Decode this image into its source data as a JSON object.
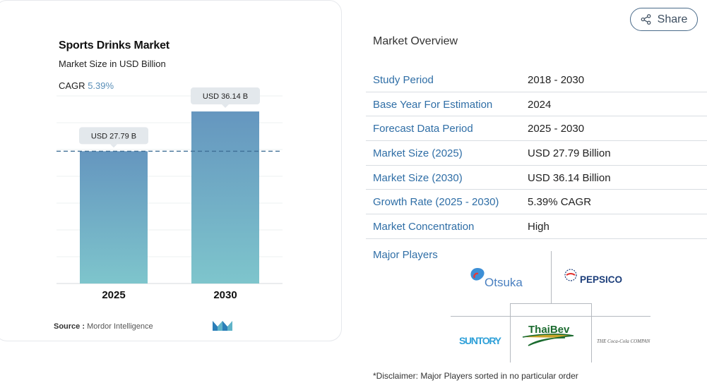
{
  "share": {
    "label": "Share",
    "icon": "share-icon"
  },
  "chart": {
    "title": "Sports Drinks Market",
    "subtitle": "Market Size in USD Billion",
    "cagr_label": "CAGR",
    "cagr_value": "5.39%",
    "source_label": "Source :",
    "source_value": "Mordor Intelligence"
  },
  "chart_data": {
    "type": "bar",
    "title": "Sports Drinks Market",
    "subtitle": "Market Size in USD Billion",
    "categories": [
      "2025",
      "2030"
    ],
    "values": [
      27.79,
      36.14
    ],
    "data_labels": [
      "USD 27.79 B",
      "USD 36.14 B"
    ],
    "ylim": [
      0,
      40
    ],
    "grid": true,
    "reference_line": 27.79,
    "bar_gradient": {
      "top": "#6596bf",
      "bottom": "#7ec5cc"
    },
    "label_bg": "#e3e8ec"
  },
  "overview": {
    "title": "Market Overview",
    "rows": [
      {
        "key": "Study Period",
        "value": "2018 - 2030"
      },
      {
        "key": "Base Year For Estimation",
        "value": "2024"
      },
      {
        "key": "Forecast Data Period",
        "value": "2025 - 2030"
      },
      {
        "key": "Market Size (2025)",
        "value": "USD 27.79 Billion"
      },
      {
        "key": "Market Size (2030)",
        "value": "USD 36.14 Billion"
      },
      {
        "key": "Growth Rate (2025 - 2030)",
        "value": "5.39% CAGR"
      },
      {
        "key": "Market Concentration",
        "value": "High"
      }
    ]
  },
  "players": {
    "label": "Major Players",
    "logos": [
      {
        "name": "Otsuka",
        "text": "Otsuka",
        "color": "#3d7fc4"
      },
      {
        "name": "PepsiCo",
        "text": "PEPSICO",
        "color": "#1c3e7a"
      },
      {
        "name": "Suntory",
        "text": "SUNTORY",
        "color": "#2fa0d8"
      },
      {
        "name": "ThaiBev",
        "text": "ThaiBev",
        "color": "#1b6b2f"
      },
      {
        "name": "Coca-Cola",
        "text": "THE Coca-Cola COMPANY",
        "color": "#555555"
      }
    ]
  },
  "disclaimer": "*Disclaimer: Major Players sorted in no particular order",
  "colors": {
    "accent": "#2f6ea6",
    "border": "#d9dde2"
  }
}
